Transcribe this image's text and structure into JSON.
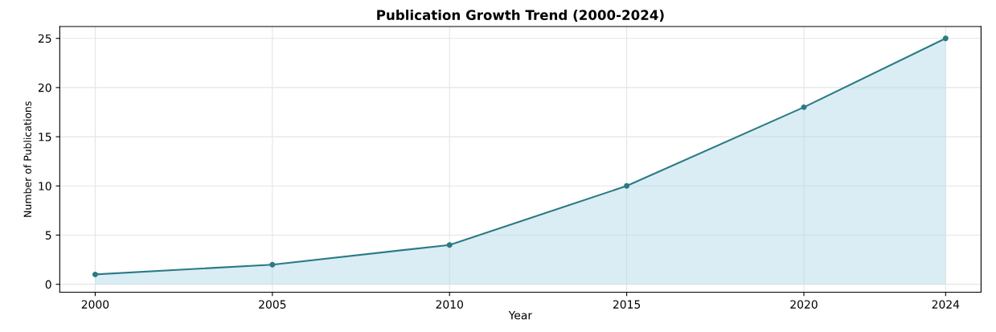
{
  "chart_data": {
    "type": "area",
    "title": "Publication Growth Trend (2000-2024)",
    "xlabel": "Year",
    "ylabel": "Number of Publications",
    "x": [
      2000,
      2005,
      2010,
      2015,
      2020,
      2024
    ],
    "series": [
      {
        "color": "#2b7a86",
        "values": [
          1,
          2,
          4,
          10,
          18,
          25
        ]
      }
    ],
    "xlim": [
      1999,
      2025
    ],
    "xticks": [
      2000,
      2005,
      2010,
      2015,
      2020,
      2024
    ],
    "ylim": [
      -0.8,
      26.2
    ],
    "yticks": [
      0,
      5,
      10,
      15,
      20,
      25
    ],
    "grid": true,
    "marker": "circle",
    "line_style": "solid"
  }
}
